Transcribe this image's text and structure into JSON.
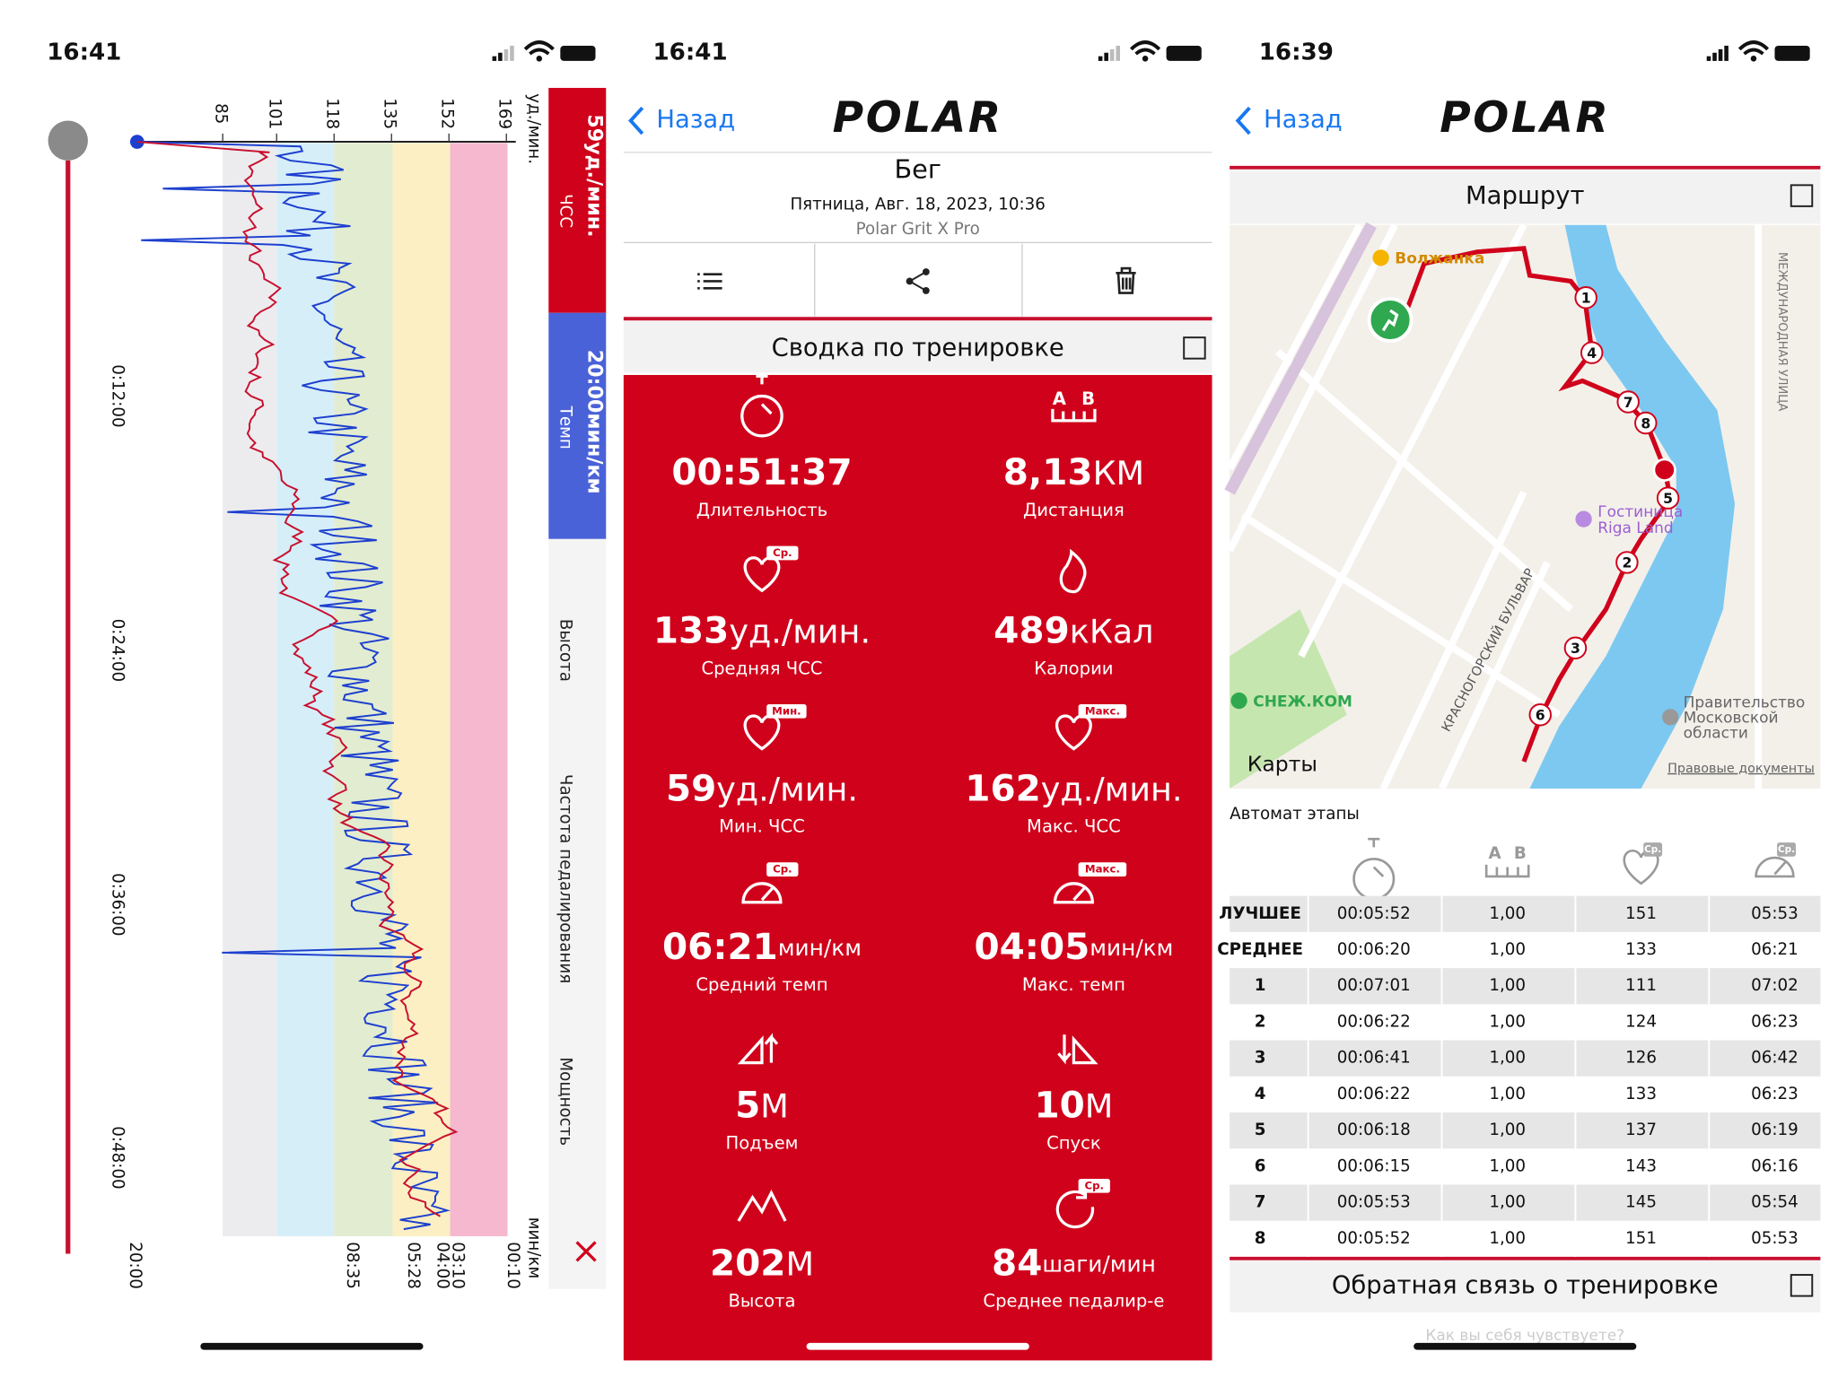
{
  "screens": [
    {
      "status_time": "16:41",
      "chart": {
        "hr_unit": "уд./мин.",
        "hr_ticks": [
          85,
          101,
          118,
          135,
          152,
          169
        ],
        "time_ticks": [
          "0:12:00",
          "0:24:00",
          "0:36:00",
          "0:48:00"
        ],
        "pace_unit": "мин/км",
        "pace_ticks": [
          "20:00",
          "08:35",
          "05:28",
          "04:00",
          "03:10",
          "00:10"
        ],
        "tabs": [
          {
            "value": "59уд./мин.",
            "label": "ЧСС"
          },
          {
            "value": "20:00мин/км",
            "label": "Темп"
          },
          {
            "label": "Высота"
          },
          {
            "label": "Частота педалирования"
          },
          {
            "label": "Мощность"
          }
        ]
      }
    },
    {
      "status_time": "16:41",
      "back": "Назад",
      "logo": "POLAR",
      "sport": "Бег",
      "date": "Пятница, Авг. 18, 2023, 10:36",
      "device": "Polar Grit X Pro",
      "section": "Сводка по тренировке",
      "stats": [
        {
          "value": "00:51:37",
          "label": "Длительность"
        },
        {
          "value": "8,13",
          "unit": "КМ",
          "label": "Дистанция",
          "badge": "A B"
        },
        {
          "value": "133",
          "unit": "уд./мин.",
          "label": "Средняя ЧСС",
          "badge": "Ср."
        },
        {
          "value": "489",
          "unit": "кКал",
          "label": "Калории"
        },
        {
          "value": "59",
          "unit": "уд./мин.",
          "label": "Мин. ЧСС",
          "badge": "Мин."
        },
        {
          "value": "162",
          "unit": "уд./мин.",
          "label": "Макс. ЧСС",
          "badge": "Макс."
        },
        {
          "value": "06:21",
          "unit": "мин/км",
          "label": "Средний темп",
          "badge": "Ср."
        },
        {
          "value": "04:05",
          "unit": "мин/км",
          "label": "Макс. темп",
          "badge": "Макс."
        },
        {
          "value": "5",
          "unit": "М",
          "label": "Подъем"
        },
        {
          "value": "10",
          "unit": "М",
          "label": "Спуск"
        },
        {
          "value": "202",
          "unit": "М",
          "label": "Высота"
        },
        {
          "value": "84",
          "unit": "шаги/мин",
          "label": "Среднее педалир-е",
          "badge": "Ср."
        }
      ]
    },
    {
      "status_time": "16:39",
      "back": "Назад",
      "logo": "POLAR",
      "section": "Маршрут",
      "map": {
        "labels": [
          "Волжанка",
          "Гостиница",
          "Riga Land",
          "СНЕЖ.КОМ",
          "КРАСНОГОРСКИЙ БУЛЬВАР",
          "Правительство",
          "Московской",
          "области",
          "МЕЖДУНАРОДНАЯ УЛИЦА",
          "Карты",
          "Правовые документы"
        ],
        "markers": [
          "1",
          "4",
          "7",
          "8",
          "5",
          "2",
          "3",
          "6"
        ]
      },
      "laps_title": "Автомат этапы",
      "laps_header_badges": [
        "A B",
        "Ср.",
        "Ср."
      ],
      "laps": [
        [
          "ЛУЧШЕЕ",
          "00:05:52",
          "1,00",
          "151",
          "05:53"
        ],
        [
          "СРЕДНЕЕ",
          "00:06:20",
          "1,00",
          "133",
          "06:21"
        ],
        [
          "1",
          "00:07:01",
          "1,00",
          "111",
          "07:02"
        ],
        [
          "2",
          "00:06:22",
          "1,00",
          "124",
          "06:23"
        ],
        [
          "3",
          "00:06:41",
          "1,00",
          "126",
          "06:42"
        ],
        [
          "4",
          "00:06:22",
          "1,00",
          "133",
          "06:23"
        ],
        [
          "5",
          "00:06:18",
          "1,00",
          "137",
          "06:19"
        ],
        [
          "6",
          "00:06:15",
          "1,00",
          "143",
          "06:16"
        ],
        [
          "7",
          "00:05:53",
          "1,00",
          "145",
          "05:54"
        ],
        [
          "8",
          "00:05:52",
          "1,00",
          "151",
          "05:53"
        ]
      ],
      "feedback": "Обратная связь о тренировке",
      "feedback_hint": "Как вы себя чувствуете?"
    }
  ]
}
